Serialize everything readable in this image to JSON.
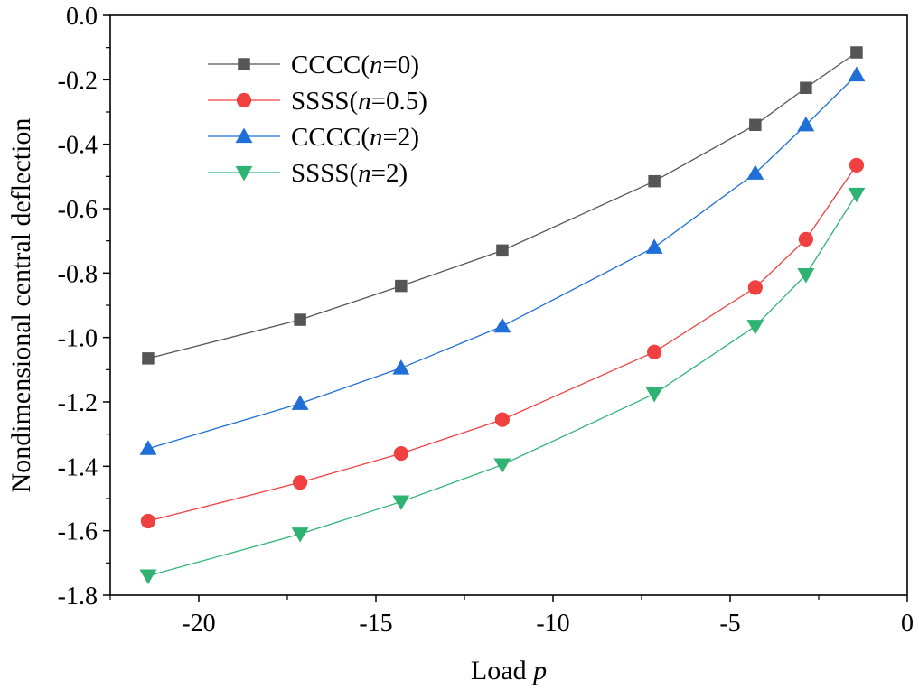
{
  "chart_data": {
    "type": "line",
    "title": "",
    "xlabel": {
      "prefix": "Load ",
      "italic": "p"
    },
    "ylabel": "Nondimensional central deflection",
    "xlim": [
      -22.5,
      0
    ],
    "ylim": [
      -1.8,
      0.0
    ],
    "x_ticks": [
      -20,
      -15,
      -10,
      -5,
      0
    ],
    "x_tick_labels": [
      "-20",
      "-15",
      "-10",
      "-5",
      "0"
    ],
    "y_ticks": [
      0.0,
      -0.2,
      -0.4,
      -0.6,
      -0.8,
      -1.0,
      -1.2,
      -1.4,
      -1.6,
      -1.8
    ],
    "y_tick_labels": [
      "0.0",
      "-0.2",
      "-0.4",
      "-0.6",
      "-0.8",
      "-1.0",
      "-1.2",
      "-1.4",
      "-1.6",
      "-1.8"
    ],
    "grid": false,
    "legend_position": "top-left",
    "x": [
      -21.43,
      -17.14,
      -14.29,
      -11.43,
      -7.14,
      -4.29,
      -2.86,
      -1.43
    ],
    "series": [
      {
        "name": "CCCC(n=0)",
        "legend": {
          "pre": "CCCC(",
          "italic": "n",
          "post": "=0)"
        },
        "color": "#555555",
        "marker": "square",
        "values": [
          -1.065,
          -0.945,
          -0.84,
          -0.73,
          -0.515,
          -0.34,
          -0.225,
          -0.115
        ]
      },
      {
        "name": "SSSS(n=0.5)",
        "legend": {
          "pre": "SSSS(",
          "italic": "n",
          "post": "=0.5)"
        },
        "color": "#f0403f",
        "marker": "circle",
        "values": [
          -1.57,
          -1.45,
          -1.36,
          -1.255,
          -1.045,
          -0.845,
          -0.695,
          -0.465
        ]
      },
      {
        "name": "CCCC(n=2)",
        "legend": {
          "pre": "CCCC(",
          "italic": "n",
          "post": "=2)"
        },
        "color": "#1f6fd6",
        "marker": "triangle-up",
        "values": [
          -1.345,
          -1.205,
          -1.095,
          -0.965,
          -0.72,
          -0.49,
          -0.34,
          -0.185
        ]
      },
      {
        "name": "SSSS(n=2)",
        "legend": {
          "pre": "SSSS(",
          "italic": "n",
          "post": "=2)"
        },
        "color": "#2fb373",
        "marker": "triangle-down",
        "values": [
          -1.74,
          -1.61,
          -1.51,
          -1.395,
          -1.175,
          -0.965,
          -0.805,
          -0.555
        ]
      }
    ]
  }
}
